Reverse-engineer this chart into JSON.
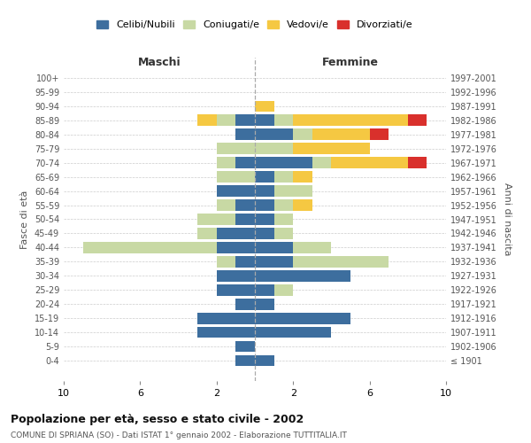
{
  "age_groups": [
    "100+",
    "95-99",
    "90-94",
    "85-89",
    "80-84",
    "75-79",
    "70-74",
    "65-69",
    "60-64",
    "55-59",
    "50-54",
    "45-49",
    "40-44",
    "35-39",
    "30-34",
    "25-29",
    "20-24",
    "15-19",
    "10-14",
    "5-9",
    "0-4"
  ],
  "birth_years": [
    "≤ 1901",
    "1902-1906",
    "1907-1911",
    "1912-1916",
    "1917-1921",
    "1922-1926",
    "1927-1931",
    "1932-1936",
    "1937-1941",
    "1942-1946",
    "1947-1951",
    "1952-1956",
    "1957-1961",
    "1962-1966",
    "1967-1971",
    "1972-1976",
    "1977-1981",
    "1982-1986",
    "1987-1991",
    "1992-1996",
    "1997-2001"
  ],
  "maschi": {
    "celibi": [
      0,
      0,
      0,
      1,
      1,
      0,
      1,
      0,
      2,
      1,
      1,
      2,
      2,
      1,
      2,
      2,
      1,
      3,
      3,
      1,
      1
    ],
    "coniugati": [
      0,
      0,
      0,
      1,
      0,
      2,
      1,
      2,
      0,
      1,
      2,
      1,
      7,
      1,
      0,
      0,
      0,
      0,
      0,
      0,
      0
    ],
    "vedovi": [
      0,
      0,
      0,
      1,
      0,
      0,
      0,
      0,
      0,
      0,
      0,
      0,
      0,
      0,
      0,
      0,
      0,
      0,
      0,
      0,
      0
    ],
    "divorziati": [
      0,
      0,
      0,
      0,
      0,
      0,
      0,
      0,
      0,
      0,
      0,
      0,
      0,
      0,
      0,
      0,
      0,
      0,
      0,
      0,
      0
    ]
  },
  "femmine": {
    "nubili": [
      0,
      0,
      0,
      1,
      2,
      0,
      3,
      1,
      1,
      1,
      1,
      1,
      2,
      2,
      5,
      1,
      1,
      5,
      4,
      0,
      1
    ],
    "coniugate": [
      0,
      0,
      0,
      1,
      1,
      2,
      1,
      1,
      2,
      1,
      1,
      1,
      2,
      5,
      0,
      1,
      0,
      0,
      0,
      0,
      0
    ],
    "vedove": [
      0,
      0,
      1,
      6,
      3,
      4,
      4,
      1,
      0,
      1,
      0,
      0,
      0,
      0,
      0,
      0,
      0,
      0,
      0,
      0,
      0
    ],
    "divorziate": [
      0,
      0,
      0,
      1,
      1,
      0,
      1,
      0,
      0,
      0,
      0,
      0,
      0,
      0,
      0,
      0,
      0,
      0,
      0,
      0,
      0
    ]
  },
  "colors": {
    "celibi_nubili": "#3d6e9e",
    "coniugati": "#c8d9a4",
    "vedovi": "#f5c842",
    "divorziati": "#d9302c"
  },
  "xlim": 10,
  "title": "Popolazione per età, sesso e stato civile - 2002",
  "subtitle": "COMUNE DI SPRIANA (SO) - Dati ISTAT 1° gennaio 2002 - Elaborazione TUTTITALIA.IT",
  "ylabel_left": "Fasce di età",
  "ylabel_right": "Anni di nascita",
  "xlabel_maschi": "Maschi",
  "xlabel_femmine": "Femmine",
  "legend_labels": [
    "Celibi/Nubili",
    "Coniugati/e",
    "Vedovi/e",
    "Divorziati/e"
  ],
  "background_color": "#ffffff",
  "grid_color": "#cccccc"
}
